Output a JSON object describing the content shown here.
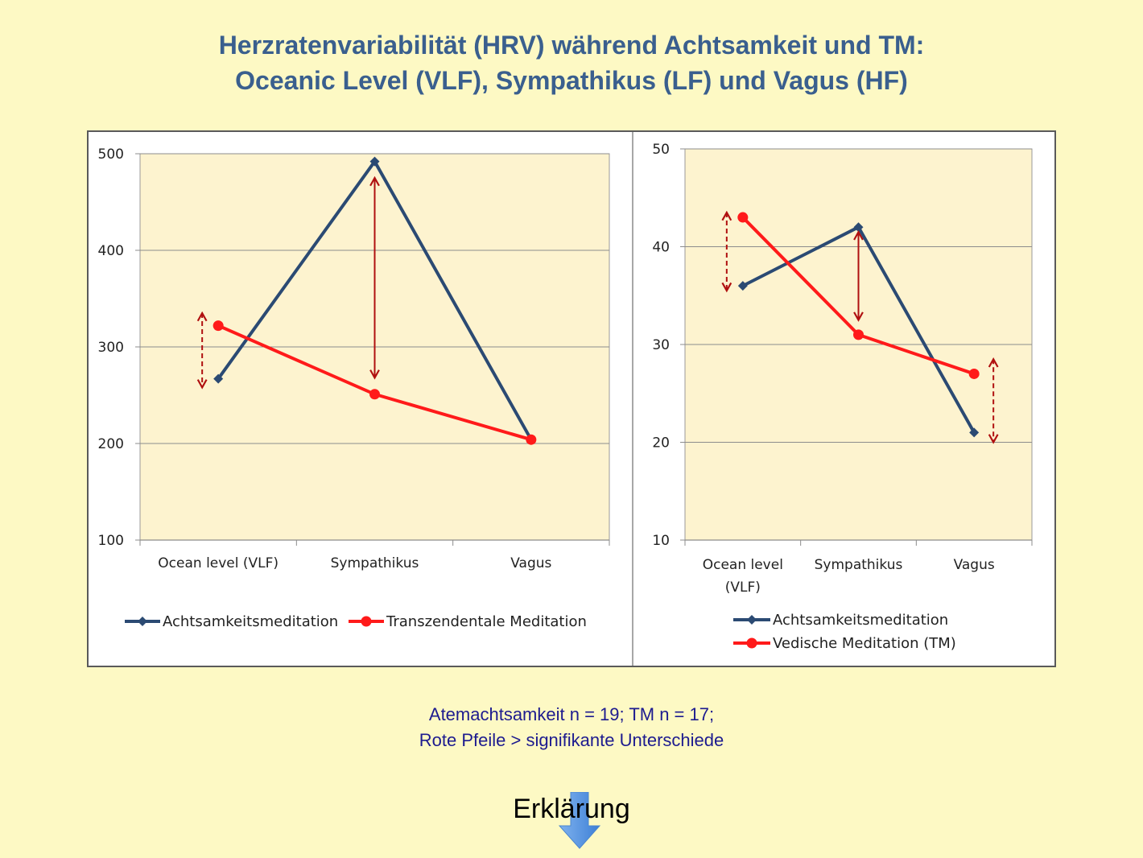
{
  "title": {
    "line1": "Herzratenvariabilität (HRV) während Achtsamkeit und TM:",
    "line2": "Oceanic Level (VLF), Sympathikus (LF) und Vagus (HF)"
  },
  "chart_data": [
    {
      "type": "line",
      "categories": [
        "Ocean level (VLF)",
        "Sympathikus",
        "Vagus"
      ],
      "ylim": [
        100,
        500
      ],
      "yticks": [
        100,
        200,
        300,
        400,
        500
      ],
      "grid": true,
      "legend": "bottom",
      "series": [
        {
          "name": "Achtsamkeitsmeditation",
          "values": [
            267,
            492,
            204
          ],
          "color": "#2b4a73",
          "marker": "diamond"
        },
        {
          "name": "Transzendentale Meditation",
          "values": [
            322,
            251,
            204
          ],
          "color": "#ff1a1a",
          "marker": "circle"
        }
      ],
      "annotations": [
        {
          "category": "Ocean level (VLF)",
          "from": 335,
          "to": 258,
          "style": "dashed",
          "side": "left"
        },
        {
          "category": "Sympathikus",
          "from": 475,
          "to": 268,
          "style": "solid",
          "side": "center"
        }
      ]
    },
    {
      "type": "line",
      "categories": [
        "Ocean level\n(VLF)",
        "Sympathikus",
        "Vagus"
      ],
      "ylim": [
        10,
        50
      ],
      "yticks": [
        10,
        20,
        30,
        40,
        50
      ],
      "grid": true,
      "legend": "bottom",
      "series": [
        {
          "name": "Achtsamkeitsmeditation",
          "values": [
            36,
            42,
            21
          ],
          "color": "#2b4a73",
          "marker": "diamond"
        },
        {
          "name": "Vedische Meditation (TM)",
          "values": [
            43,
            31,
            27
          ],
          "color": "#ff1a1a",
          "marker": "circle"
        }
      ],
      "annotations": [
        {
          "category": "Ocean level\n(VLF)",
          "from": 43.5,
          "to": 35.5,
          "style": "dashed",
          "side": "left"
        },
        {
          "category": "Sympathikus",
          "from": 41.5,
          "to": 32.5,
          "style": "solid",
          "side": "center"
        },
        {
          "category": "Vagus",
          "from": 28.5,
          "to": 20,
          "style": "dashed",
          "side": "right"
        }
      ]
    }
  ],
  "footnote": {
    "line1": "Atemachtsamkeit n = 19; TM n = 17;",
    "line2": "Rote Pfeile > signifikante Unterschiede"
  },
  "explain_link": "Erklärung",
  "colors": {
    "background": "#fdf9c4",
    "plot_area": "#fdf3cf",
    "title": "#3a5f8e",
    "footnote": "#1d1b8f",
    "arrow": "#b01010"
  }
}
